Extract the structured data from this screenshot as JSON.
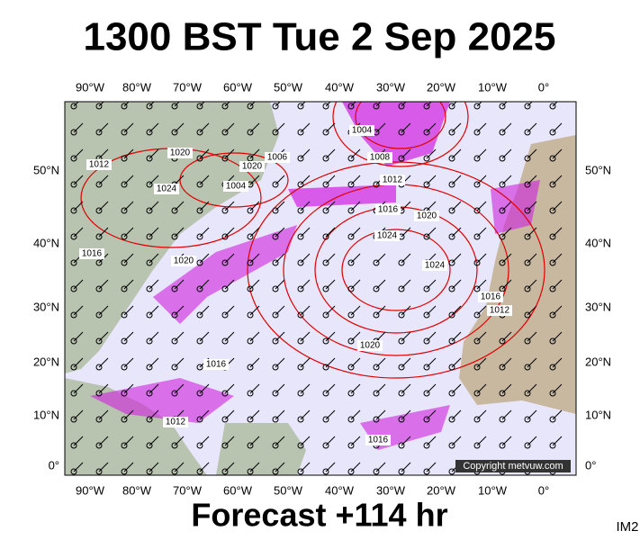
{
  "header": {
    "title": "1300 BST Tue 2 Sep 2025"
  },
  "map": {
    "lon_labels": [
      "90°W",
      "80°W",
      "70°W",
      "60°W",
      "50°W",
      "40°W",
      "30°W",
      "20°W",
      "10°W",
      "0°"
    ],
    "lat_labels": [
      "50°N",
      "40°N",
      "30°N",
      "20°N",
      "10°N",
      "0°"
    ],
    "isobar_labels": [
      "1012",
      "1020",
      "1024",
      "1020",
      "1006",
      "1004",
      "1016",
      "1020",
      "1004",
      "1008",
      "1012",
      "1016",
      "1020",
      "1024",
      "1024",
      "1016",
      "1012",
      "1020",
      "1016",
      "1012",
      "1016"
    ],
    "copyright": "Copyright metvuw.com"
  },
  "footer": {
    "text": "Forecast +114 hr",
    "code": "IM2"
  }
}
